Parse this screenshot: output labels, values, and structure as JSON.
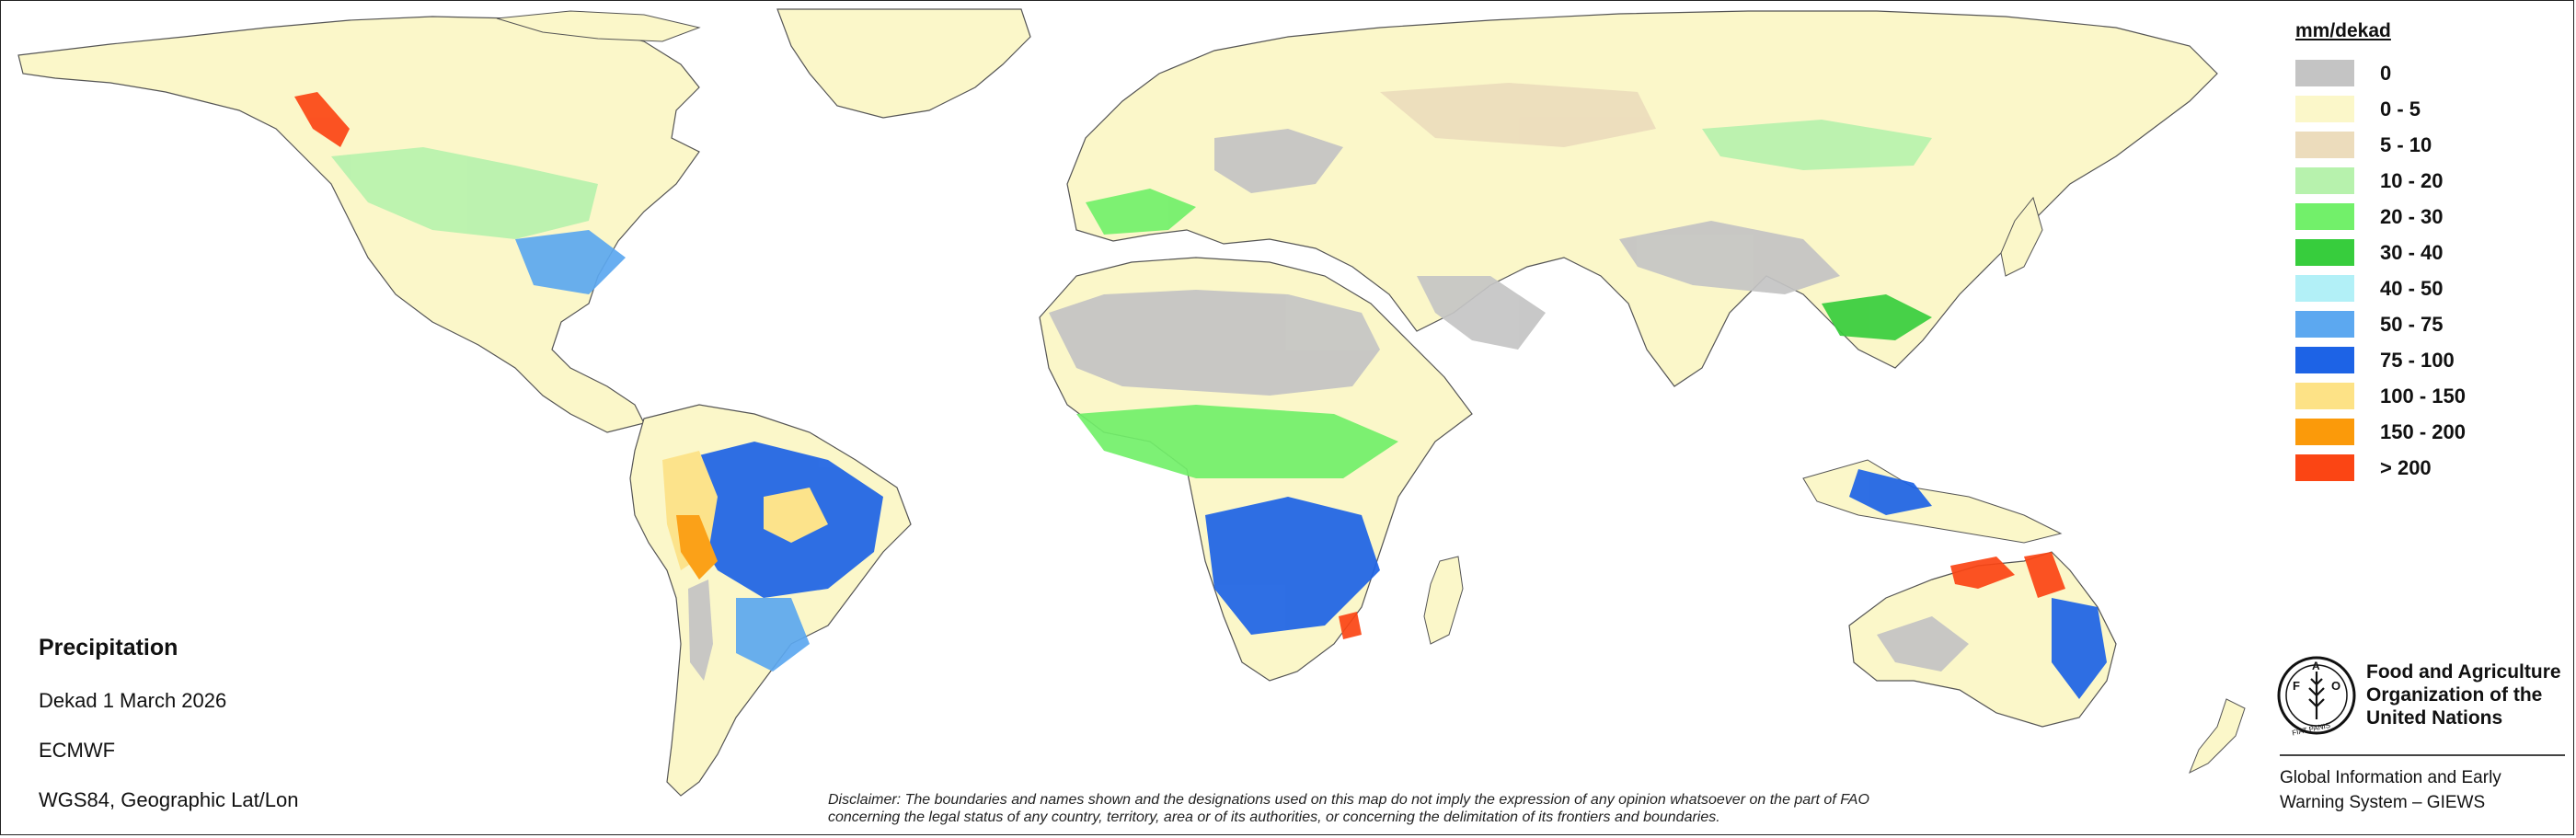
{
  "map": {
    "ocean_color": "#ffffff",
    "border_color": "#3a3a3a"
  },
  "legend": {
    "title": "mm/dekad",
    "classes": [
      {
        "label": "0",
        "color": "#c4c4c4"
      },
      {
        "label": "0 - 5",
        "color": "#fbf7c9"
      },
      {
        "label": "5 - 10",
        "color": "#ecdcbc"
      },
      {
        "label": "10 - 20",
        "color": "#b7f2ad"
      },
      {
        "label": "20 - 30",
        "color": "#72f06a"
      },
      {
        "label": "30 - 40",
        "color": "#37cd3d"
      },
      {
        "label": "40 - 50",
        "color": "#b2f0f7"
      },
      {
        "label": "50 - 75",
        "color": "#5ca8f0"
      },
      {
        "label": "75 - 100",
        "color": "#1d63e6"
      },
      {
        "label": "100 - 150",
        "color": "#fde286"
      },
      {
        "label": "150 - 200",
        "color": "#fb9a0a"
      },
      {
        "label": "> 200",
        "color": "#fb4514"
      }
    ]
  },
  "info": {
    "title": "Precipitation",
    "dekad": "Dekad 1 March 2026",
    "source": "ECMWF",
    "projection": "WGS84, Geographic Lat/Lon"
  },
  "disclaimer": {
    "line1": "Disclaimer: The boundaries and names shown and the designations used on this map do not imply the expression of any opinion whatsoever on the part of FAO",
    "line2": "concerning the legal status of any country, territory, area or of its authorities, or concerning the delimitation of its frontiers and boundaries."
  },
  "organization": {
    "name_line1": "Food and Agriculture",
    "name_line2": "Organization of the",
    "name_line3": "United Nations",
    "logo_text": "FAO",
    "logo_motto": "FIAT PANIS",
    "system_line1": "Global Information and Early",
    "system_line2": "Warning System – GIEWS"
  }
}
